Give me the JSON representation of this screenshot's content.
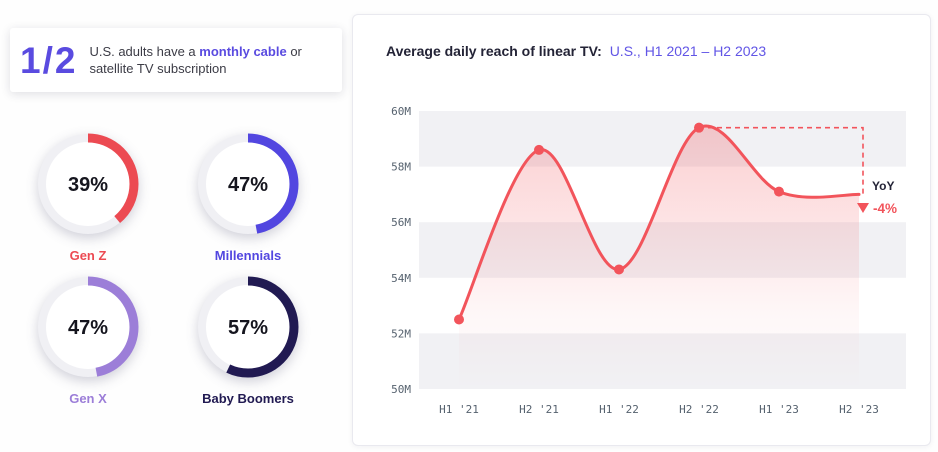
{
  "stat_card": {
    "fraction": "1/2",
    "text_before": "U.S. adults have a ",
    "text_bold": "monthly cable",
    "text_after": " or satellite TV subscription"
  },
  "donuts": [
    {
      "label": "Gen Z",
      "value": 39,
      "display": "39%",
      "color": "#ec4a52"
    },
    {
      "label": "Millennials",
      "value": 47,
      "display": "47%",
      "color": "#5246e0"
    },
    {
      "label": "Gen X",
      "value": 47,
      "display": "47%",
      "color": "#9c7ed8"
    },
    {
      "label": "Baby Boomers",
      "value": 57,
      "display": "57%",
      "color": "#211a52"
    }
  ],
  "chart": {
    "title_bold": "Average daily reach of linear TV:",
    "title_accent": "U.S., H1 2021 – H2 2023"
  },
  "chart_data": {
    "type": "line",
    "title": "Average daily reach of linear TV: U.S., H1 2021 – H2 2023",
    "categories": [
      "H1 '21",
      "H2 '21",
      "H1 '22",
      "H2 '22",
      "H1 '23",
      "H2 '23"
    ],
    "values": [
      52.5,
      58.6,
      54.3,
      59.4,
      57.1,
      57.0
    ],
    "unit": "M",
    "ylim": [
      50,
      60
    ],
    "yticks": [
      50,
      52,
      54,
      56,
      58,
      60
    ],
    "ytick_labels": [
      "50M",
      "52M",
      "54M",
      "56M",
      "58M",
      "60M"
    ],
    "line_color": "#f2545b",
    "band_color": "#f1f1f4",
    "grid": "horizontal-bands",
    "legend": "none",
    "annotation": {
      "label": "YoY",
      "value": "-4%",
      "arrow": "down"
    }
  }
}
